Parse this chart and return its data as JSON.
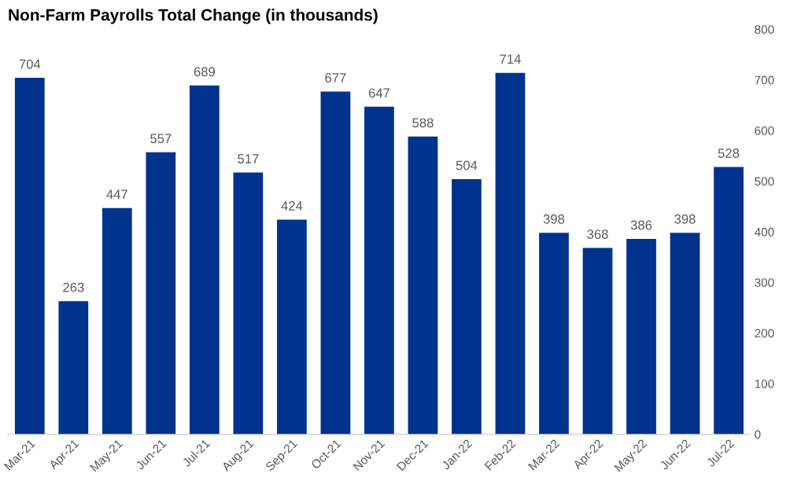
{
  "chart_data": {
    "type": "bar",
    "title": "Non-Farm Payrolls Total Change (in thousands)",
    "categories": [
      "Mar-21",
      "Apr-21",
      "May-21",
      "Jun-21",
      "Jul-21",
      "Aug-21",
      "Sep-21",
      "Oct-21",
      "Nov-21",
      "Dec-21",
      "Jan-22",
      "Feb-22",
      "Mar-22",
      "Apr-22",
      "May-22",
      "Jun-22",
      "Jul-22"
    ],
    "values": [
      704,
      263,
      447,
      557,
      689,
      517,
      424,
      677,
      647,
      588,
      504,
      714,
      398,
      368,
      386,
      398,
      528
    ],
    "color": "#00338d",
    "ylim": [
      0,
      800
    ],
    "yticks": [
      0,
      100,
      200,
      300,
      400,
      500,
      600,
      700,
      800
    ],
    "data_labels": true,
    "grid": false
  }
}
